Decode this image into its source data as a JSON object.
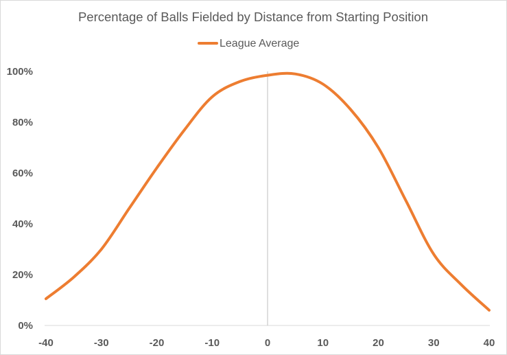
{
  "chart_data": {
    "type": "line",
    "title": "Percentage of Balls Fielded by Distance from Starting Position",
    "xlabel": "",
    "ylabel": "",
    "xlim": [
      -40,
      40
    ],
    "ylim": [
      0,
      100
    ],
    "x_ticks": [
      -40,
      -30,
      -20,
      -10,
      0,
      10,
      20,
      30,
      40
    ],
    "x_tick_labels": [
      "-40",
      "-30",
      "-20",
      "-10",
      "0",
      "10",
      "20",
      "30",
      "40"
    ],
    "y_ticks": [
      0,
      20,
      40,
      60,
      80,
      100
    ],
    "y_tick_labels": [
      "0%",
      "20%",
      "40%",
      "60%",
      "80%",
      "100%"
    ],
    "grid": false,
    "reference_line_x": 0,
    "legend": {
      "position": "top-center"
    },
    "series": [
      {
        "name": "League Average",
        "color": "#ED7D31",
        "x": [
          -40,
          -35,
          -30,
          -25,
          -20,
          -15,
          -10,
          -5,
          0,
          5,
          10,
          15,
          20,
          25,
          30,
          35,
          40
        ],
        "values": [
          10.5,
          19,
          30,
          46,
          62,
          77,
          90,
          96,
          98.5,
          99,
          95,
          85,
          70,
          49,
          28,
          16,
          6
        ]
      }
    ]
  }
}
